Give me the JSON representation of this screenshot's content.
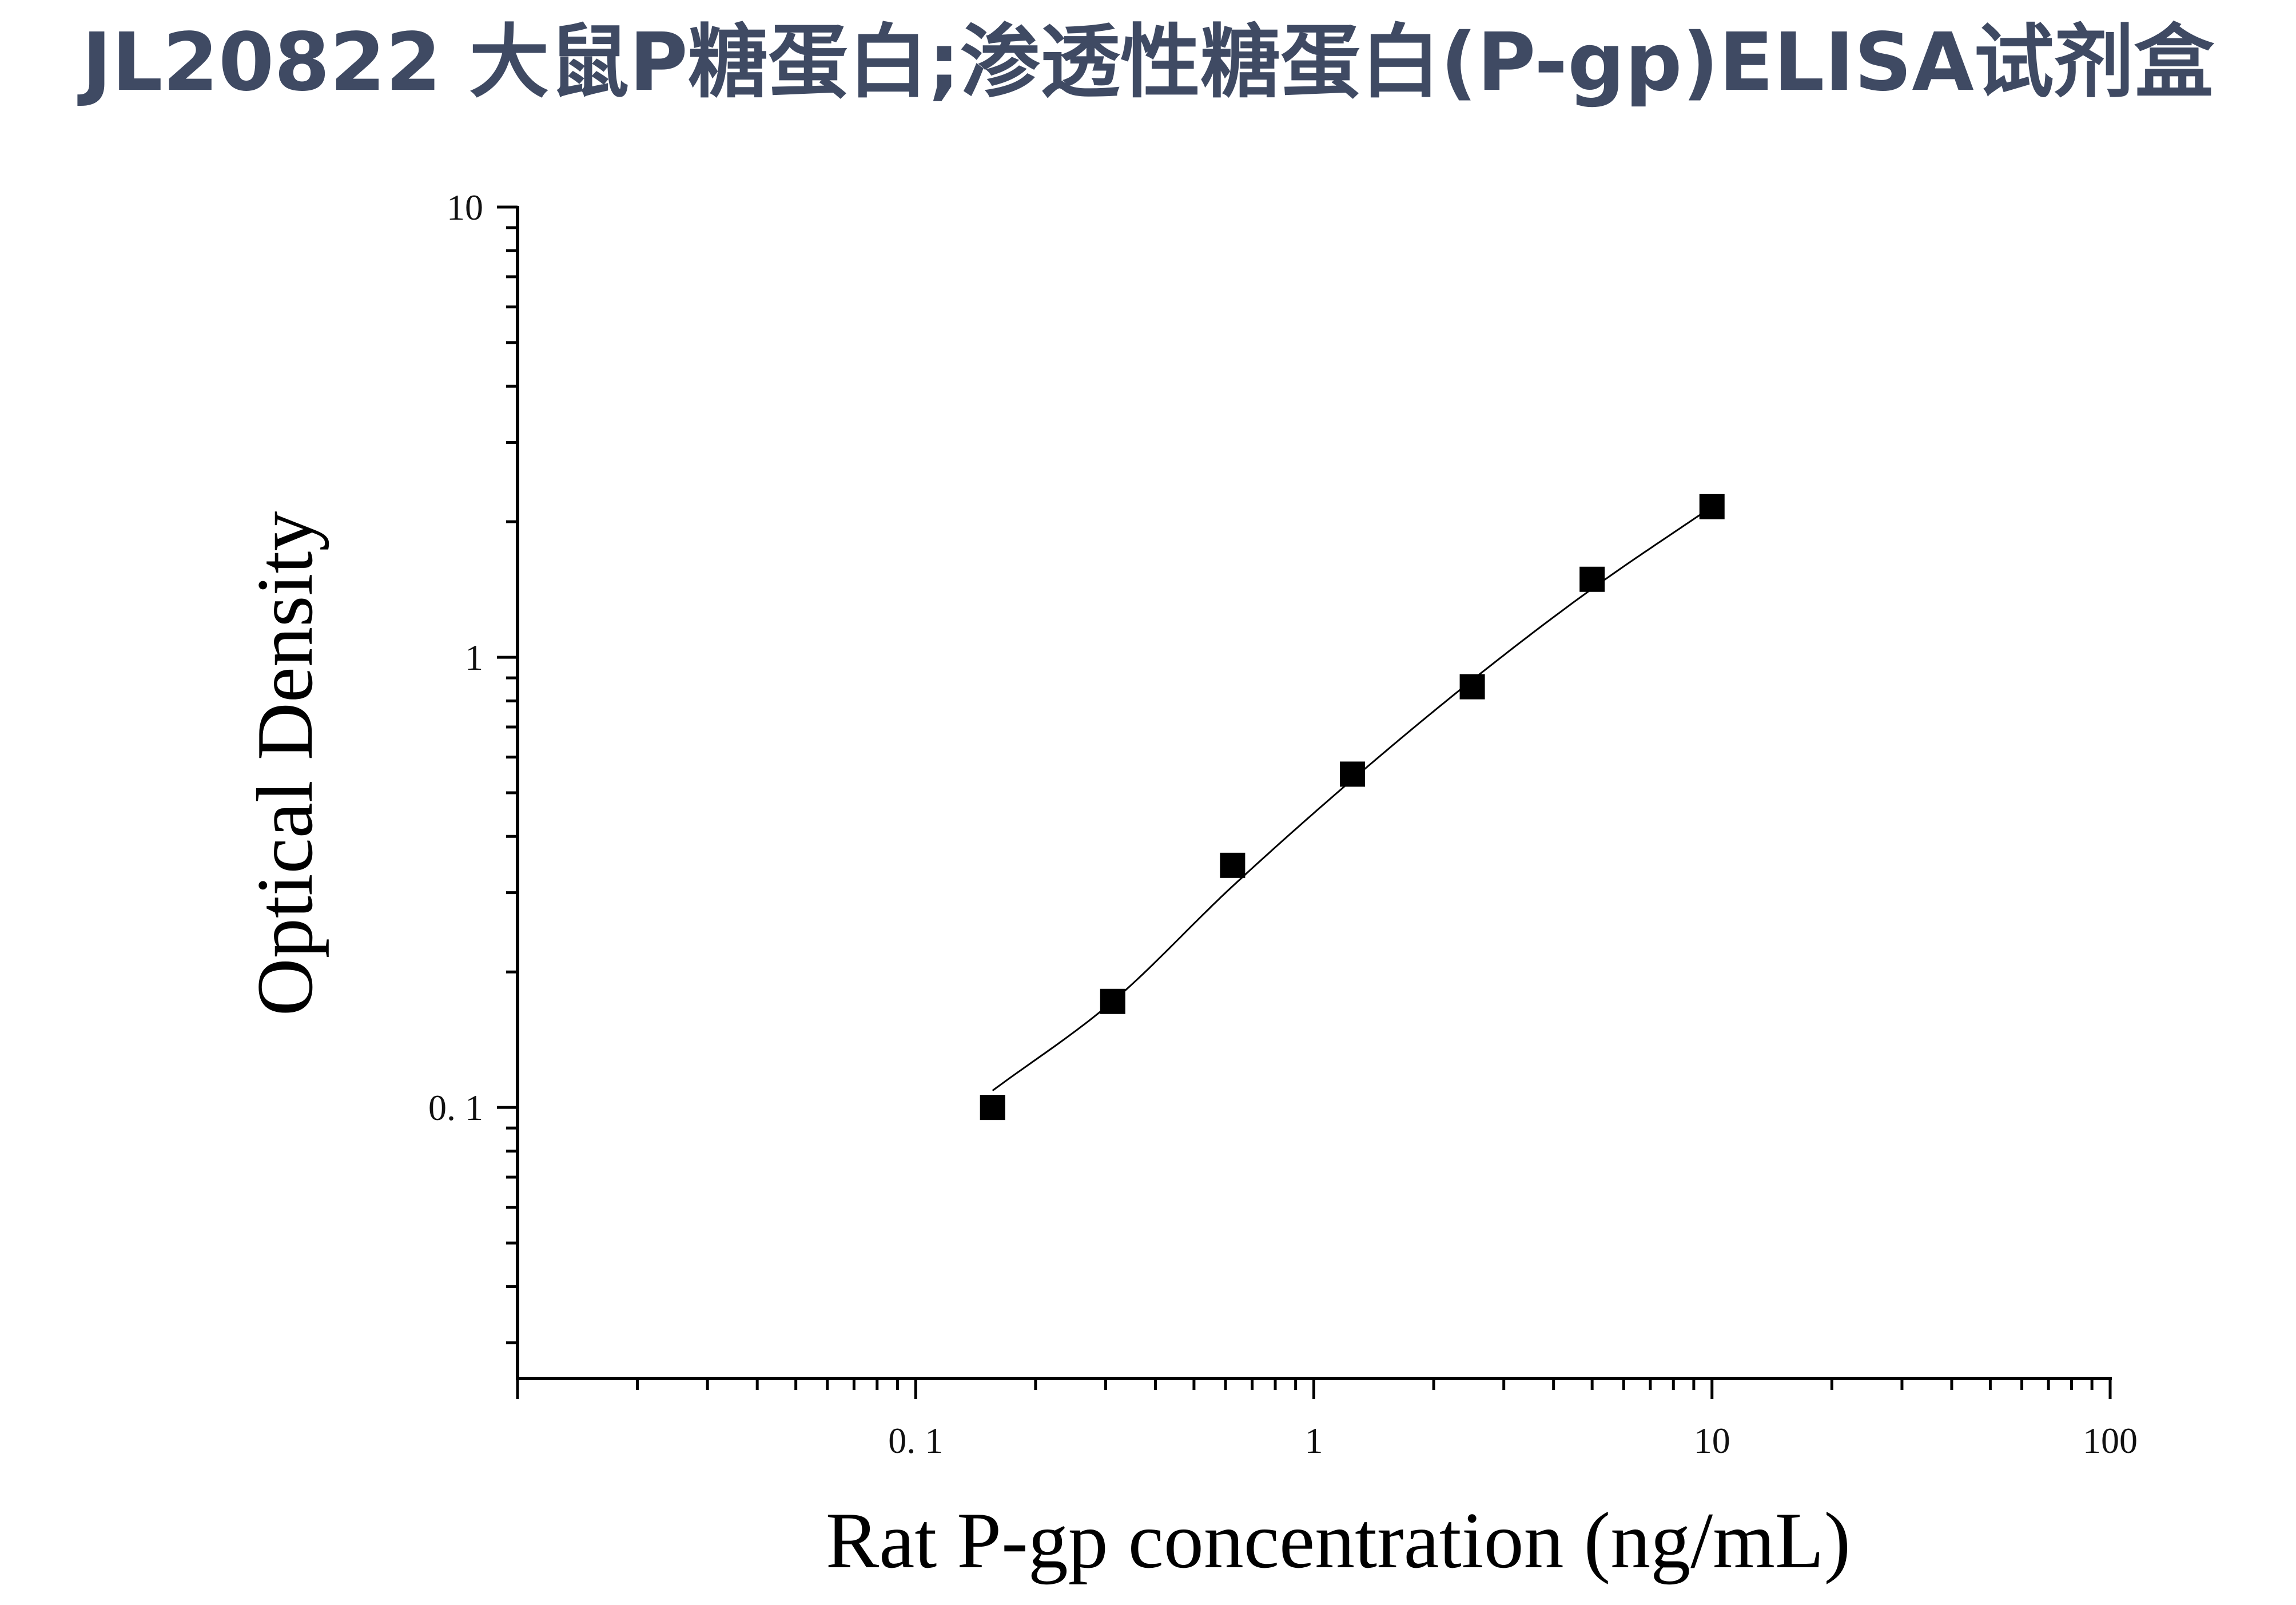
{
  "title": "JL20822 大鼠P糖蛋白;渗透性糖蛋白(P-gp)ELISA试剂盒",
  "chart_data": {
    "type": "scatter",
    "title": "JL20822 大鼠P糖蛋白;渗透性糖蛋白(P-gp)ELISA试剂盒",
    "xlabel": "Rat P-gp concentration (ng/mL)",
    "ylabel": "Optical Density",
    "x_scale": "log",
    "y_scale": "log",
    "xlim": [
      0.01,
      100
    ],
    "ylim": [
      0.025,
      10
    ],
    "x_ticks": [
      0.1,
      1,
      10,
      100
    ],
    "x_tick_labels": [
      "0. 1",
      "1",
      "10",
      "100"
    ],
    "y_ticks": [
      0.1,
      1,
      10
    ],
    "y_tick_labels": [
      "0. 1",
      "1",
      "10"
    ],
    "grid": false,
    "marker": "square",
    "marker_color": "#000000",
    "line_color": "#000000",
    "series": [
      {
        "x": [
          0.156,
          0.3125,
          0.625,
          1.25,
          2.5,
          5,
          10
        ],
        "y": [
          0.1,
          0.172,
          0.345,
          0.55,
          0.86,
          1.49,
          2.16
        ]
      }
    ],
    "fit_curve": {
      "x": [
        0.156,
        0.3125,
        0.625,
        1.25,
        2.5,
        5,
        10
      ],
      "y": [
        0.109,
        0.172,
        0.31,
        0.535,
        0.89,
        1.42,
        2.16
      ]
    }
  }
}
